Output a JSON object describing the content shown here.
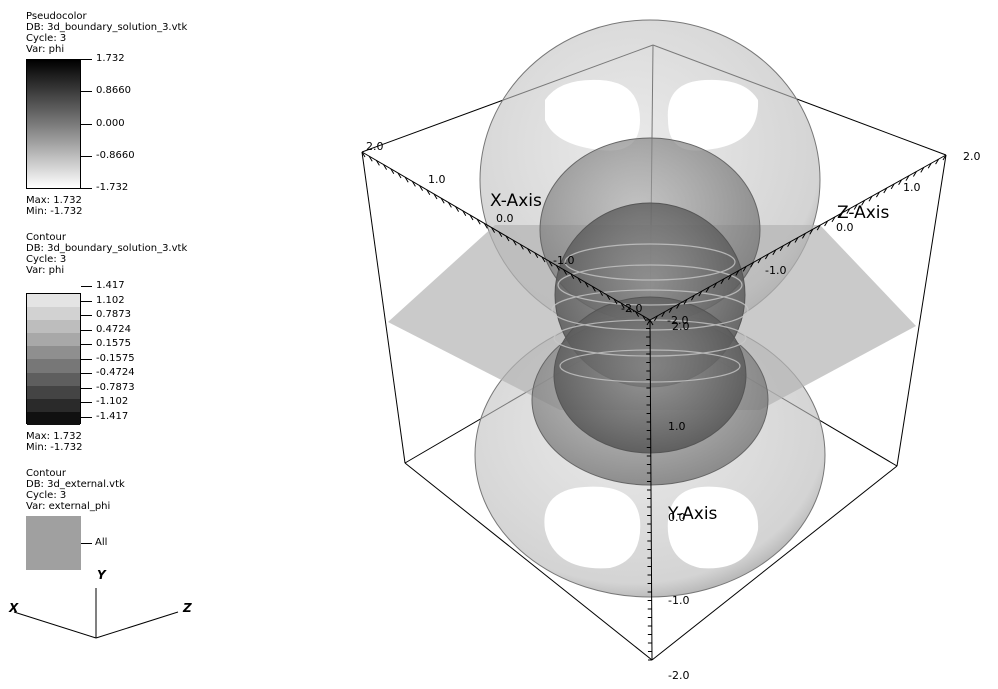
{
  "legend_pseudocolor": {
    "plot_type": "Pseudocolor",
    "db": "DB: 3d_boundary_solution_3.vtk",
    "cycle": "Cycle: 3",
    "var": "Var: phi",
    "labels": [
      "1.732",
      "0.8660",
      "0.000",
      "-0.8660",
      "-1.732"
    ],
    "max": "Max:  1.732",
    "min": "Min: -1.732"
  },
  "legend_contour1": {
    "plot_type": "Contour",
    "db": "DB: 3d_boundary_solution_3.vtk",
    "cycle": "Cycle: 3",
    "var": "Var: phi",
    "levels": [
      "1.417",
      "1.102",
      "0.7873",
      "0.4724",
      "0.1575",
      "-0.1575",
      "-0.4724",
      "-0.7873",
      "-1.102",
      "-1.417"
    ],
    "band_colors": [
      "#e4e4e4",
      "#d2d2d2",
      "#bdbdbd",
      "#a8a8a8",
      "#8f8f8f",
      "#777777",
      "#5e5e5e",
      "#444444",
      "#2a2a2a",
      "#101010"
    ],
    "max": "Max:  1.732",
    "min": "Min: -1.732"
  },
  "legend_contour2": {
    "plot_type": "Contour",
    "db": "DB: 3d_external.vtk",
    "cycle": "Cycle: 3",
    "var": "Var: external_phi",
    "label": "All",
    "color": "#a0a0a0"
  },
  "triad": {
    "x": "X",
    "y": "Y",
    "z": "Z"
  },
  "axes": {
    "x_title": "X-Axis",
    "y_title": "Y-Axis",
    "z_title": "Z-Axis",
    "x_labels": {
      "top_left": "2.0",
      "mid": "1.0",
      "zero": "0.0",
      "neg1": "-1.0",
      "neg2": "-2.0"
    },
    "z_labels": {
      "top_right": "2.0",
      "pos1": "1.0",
      "zero": "0.0",
      "neg1": "-1.0",
      "neg2": "-2.0"
    },
    "y_labels": {
      "top": "2.0",
      "pos1": "1.0",
      "zero": "0.0",
      "neg1": "-1.0",
      "bottom": "-2.0"
    }
  }
}
